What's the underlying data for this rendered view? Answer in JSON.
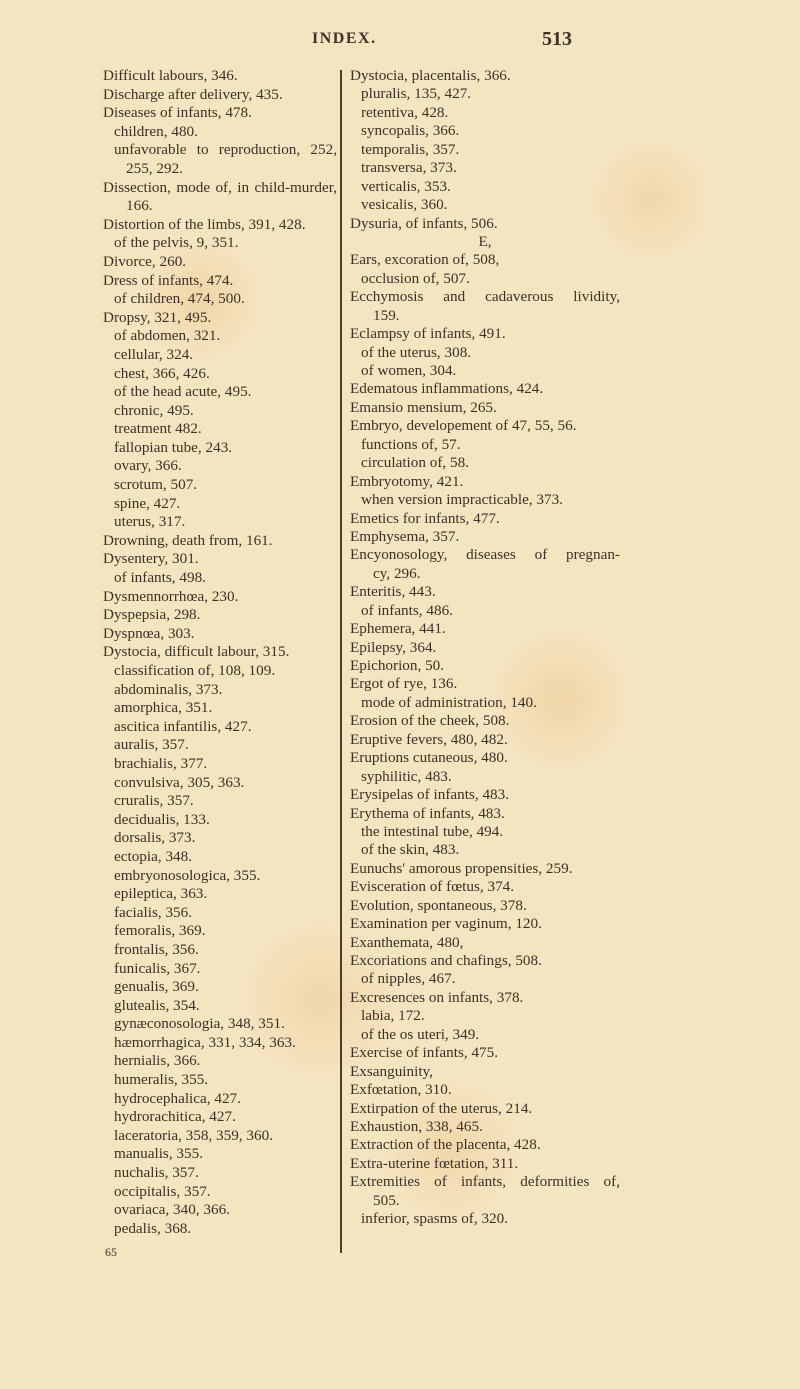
{
  "header": {
    "running_title": "INDEX.",
    "page_number": "513"
  },
  "left_column": [
    {
      "text": "Difficult labours, 346.",
      "indent": 0
    },
    {
      "text": "Discharge after delivery, 435.",
      "indent": 0
    },
    {
      "text": "Diseases of infants, 478.",
      "indent": 0
    },
    {
      "text": "children, 480.",
      "indent": 1
    },
    {
      "text": "unfavorable to reproduction, 252,",
      "indent": 1,
      "justify": true
    },
    {
      "text": "255, 292.",
      "indent": 2
    },
    {
      "text": "Dissection, mode of, in child-murder,",
      "indent": 0,
      "justify": true
    },
    {
      "text": "166.",
      "indent": 2
    },
    {
      "text": "Distortion of the limbs, 391, 428.",
      "indent": 0
    },
    {
      "text": "of the pelvis, 9, 351.",
      "indent": 1
    },
    {
      "text": "Divorce, 260.",
      "indent": 0
    },
    {
      "text": "Dress of infants, 474.",
      "indent": 0
    },
    {
      "text": "of children, 474, 500.",
      "indent": 1
    },
    {
      "text": "Dropsy, 321, 495.",
      "indent": 0
    },
    {
      "text": "of abdomen, 321.",
      "indent": 1
    },
    {
      "text": "cellular, 324.",
      "indent": 1
    },
    {
      "text": "chest, 366, 426.",
      "indent": 1
    },
    {
      "text": "of the head acute, 495.",
      "indent": 1
    },
    {
      "text": "chronic, 495.",
      "indent": 1
    },
    {
      "text": "treatment 482.",
      "indent": 1
    },
    {
      "text": "fallopian tube, 243.",
      "indent": 1
    },
    {
      "text": "ovary, 366.",
      "indent": 1
    },
    {
      "text": "scrotum, 507.",
      "indent": 1
    },
    {
      "text": "spine, 427.",
      "indent": 1
    },
    {
      "text": "uterus, 317.",
      "indent": 1
    },
    {
      "text": "Drowning, death from, 161.",
      "indent": 0
    },
    {
      "text": "Dysentery, 301.",
      "indent": 0
    },
    {
      "text": "of infants, 498.",
      "indent": 1
    },
    {
      "text": "Dysmennorrhœa, 230.",
      "indent": 0
    },
    {
      "text": "Dyspepsia, 298.",
      "indent": 0
    },
    {
      "text": "Dyspnœa, 303.",
      "indent": 0
    },
    {
      "text": "Dystocia, difficult labour, 315.",
      "indent": 0
    },
    {
      "text": "classification of, 108, 109.",
      "indent": 1
    },
    {
      "text": "abdominalis, 373.",
      "indent": 1
    },
    {
      "text": "amorphica, 351.",
      "indent": 1
    },
    {
      "text": "ascitica infantilis, 427.",
      "indent": 1
    },
    {
      "text": "auralis, 357.",
      "indent": 1
    },
    {
      "text": "brachialis, 377.",
      "indent": 1
    },
    {
      "text": "convulsiva, 305, 363.",
      "indent": 1
    },
    {
      "text": "cruralis, 357.",
      "indent": 1
    },
    {
      "text": "decidualis, 133.",
      "indent": 1
    },
    {
      "text": "dorsalis, 373.",
      "indent": 1
    },
    {
      "text": "ectopia, 348.",
      "indent": 1
    },
    {
      "text": "embryonosologica, 355.",
      "indent": 1
    },
    {
      "text": "epileptica, 363.",
      "indent": 1
    },
    {
      "text": "facialis, 356.",
      "indent": 1
    },
    {
      "text": "femoralis, 369.",
      "indent": 1
    },
    {
      "text": "frontalis, 356.",
      "indent": 1
    },
    {
      "text": "funicalis, 367.",
      "indent": 1
    },
    {
      "text": "genualis, 369.",
      "indent": 1
    },
    {
      "text": "glutealis, 354.",
      "indent": 1
    },
    {
      "text": "gynæconosologia, 348, 351.",
      "indent": 1
    },
    {
      "text": "hæmorrhagica, 331, 334, 363.",
      "indent": 1
    },
    {
      "text": "hernialis, 366.",
      "indent": 1
    },
    {
      "text": "humeralis, 355.",
      "indent": 1
    },
    {
      "text": "hydrocephalica, 427.",
      "indent": 1
    },
    {
      "text": "hydrorachitica, 427.",
      "indent": 1
    },
    {
      "text": "laceratoria, 358, 359, 360.",
      "indent": 1
    },
    {
      "text": "manualis, 355.",
      "indent": 1
    },
    {
      "text": "nuchalis, 357.",
      "indent": 1
    },
    {
      "text": "occipitalis, 357.",
      "indent": 1
    },
    {
      "text": "ovariaca, 340, 366.",
      "indent": 1
    },
    {
      "text": "pedalis, 368.",
      "indent": 1
    }
  ],
  "right_column": [
    {
      "text": "Dystocia, placentalis, 366.",
      "indent": 0
    },
    {
      "text": "pluralis, 135, 427.",
      "indent": 1
    },
    {
      "text": "retentiva, 428.",
      "indent": 1
    },
    {
      "text": "syncopalis, 366.",
      "indent": 1
    },
    {
      "text": "temporalis, 357.",
      "indent": 1
    },
    {
      "text": "transversa, 373.",
      "indent": 1
    },
    {
      "text": "verticalis, 353.",
      "indent": 1
    },
    {
      "text": "vesicalis, 360.",
      "indent": 1
    },
    {
      "text": "Dysuria, of infants, 506.",
      "indent": 0
    },
    {
      "text": "E,",
      "center": true
    },
    {
      "text": "Ears, excoration of, 508,",
      "indent": 0
    },
    {
      "text": "occlusion of, 507.",
      "indent": 1
    },
    {
      "text": "Ecchymosis and cadaverous lividity,",
      "indent": 0,
      "justify": true
    },
    {
      "text": "159.",
      "indent": 2
    },
    {
      "text": "Eclampsy of infants, 491.",
      "indent": 0
    },
    {
      "text": "of the uterus, 308.",
      "indent": 1
    },
    {
      "text": "of women, 304.",
      "indent": 1
    },
    {
      "text": "Edematous inflammations, 424.",
      "indent": 0
    },
    {
      "text": "Emansio mensium, 265.",
      "indent": 0
    },
    {
      "text": "Embryo, developement of 47, 55, 56.",
      "indent": 0
    },
    {
      "text": "functions of, 57.",
      "indent": 1
    },
    {
      "text": "circulation of, 58.",
      "indent": 1
    },
    {
      "text": "Embryotomy, 421.",
      "indent": 0
    },
    {
      "text": "when version impracticable, 373.",
      "indent": 1
    },
    {
      "text": "Emetics for infants, 477.",
      "indent": 0
    },
    {
      "text": "Emphysema, 357.",
      "indent": 0
    },
    {
      "text": "Encyonosology, diseases of pregnan-",
      "indent": 0,
      "justify": true
    },
    {
      "text": "cy, 296.",
      "indent": 2
    },
    {
      "text": "Enteritis, 443.",
      "indent": 0
    },
    {
      "text": "of infants, 486.",
      "indent": 1
    },
    {
      "text": "Ephemera, 441.",
      "indent": 0
    },
    {
      "text": "Epilepsy, 364.",
      "indent": 0
    },
    {
      "text": "Epichorion, 50.",
      "indent": 0
    },
    {
      "text": "Ergot of rye, 136.",
      "indent": 0
    },
    {
      "text": "mode of administration, 140.",
      "indent": 1
    },
    {
      "text": "Erosion of the cheek, 508.",
      "indent": 0
    },
    {
      "text": "Eruptive fevers, 480, 482.",
      "indent": 0
    },
    {
      "text": "Eruptions cutaneous, 480.",
      "indent": 0
    },
    {
      "text": "syphilitic, 483.",
      "indent": 1
    },
    {
      "text": "Erysipelas of infants, 483.",
      "indent": 0
    },
    {
      "text": "Erythema of infants, 483.",
      "indent": 0
    },
    {
      "text": "the intestinal tube, 494.",
      "indent": 1
    },
    {
      "text": "of the skin, 483.",
      "indent": 1
    },
    {
      "text": "Eunuchs' amorous propensities, 259.",
      "indent": 0
    },
    {
      "text": "Evisceration of fœtus, 374.",
      "indent": 0
    },
    {
      "text": "Evolution, spontaneous, 378.",
      "indent": 0
    },
    {
      "text": "Examination per vaginum, 120.",
      "indent": 0
    },
    {
      "text": "Exanthemata, 480,",
      "indent": 0
    },
    {
      "text": "Excoriations and chafings, 508.",
      "indent": 0
    },
    {
      "text": "of nipples, 467.",
      "indent": 1
    },
    {
      "text": "Excresences on infants, 378.",
      "indent": 0
    },
    {
      "text": "labia, 172.",
      "indent": 1
    },
    {
      "text": "of the os uteri, 349.",
      "indent": 1
    },
    {
      "text": "Exercise of infants, 475.",
      "indent": 0
    },
    {
      "text": "Exsanguinity,",
      "indent": 0
    },
    {
      "text": "Exfœtation, 310.",
      "indent": 0
    },
    {
      "text": "Extirpation of the uterus, 214.",
      "indent": 0
    },
    {
      "text": "Exhaustion, 338, 465.",
      "indent": 0
    },
    {
      "text": "Extraction of the placenta, 428.",
      "indent": 0
    },
    {
      "text": "Extra-uterine fœtation, 311.",
      "indent": 0
    },
    {
      "text": "Extremities of infants, deformities of,",
      "indent": 0,
      "justify": true
    },
    {
      "text": "505.",
      "indent": 2
    },
    {
      "text": "inferior, spasms of, 320.",
      "indent": 1
    }
  ],
  "footer": {
    "signature_mark": "65"
  }
}
